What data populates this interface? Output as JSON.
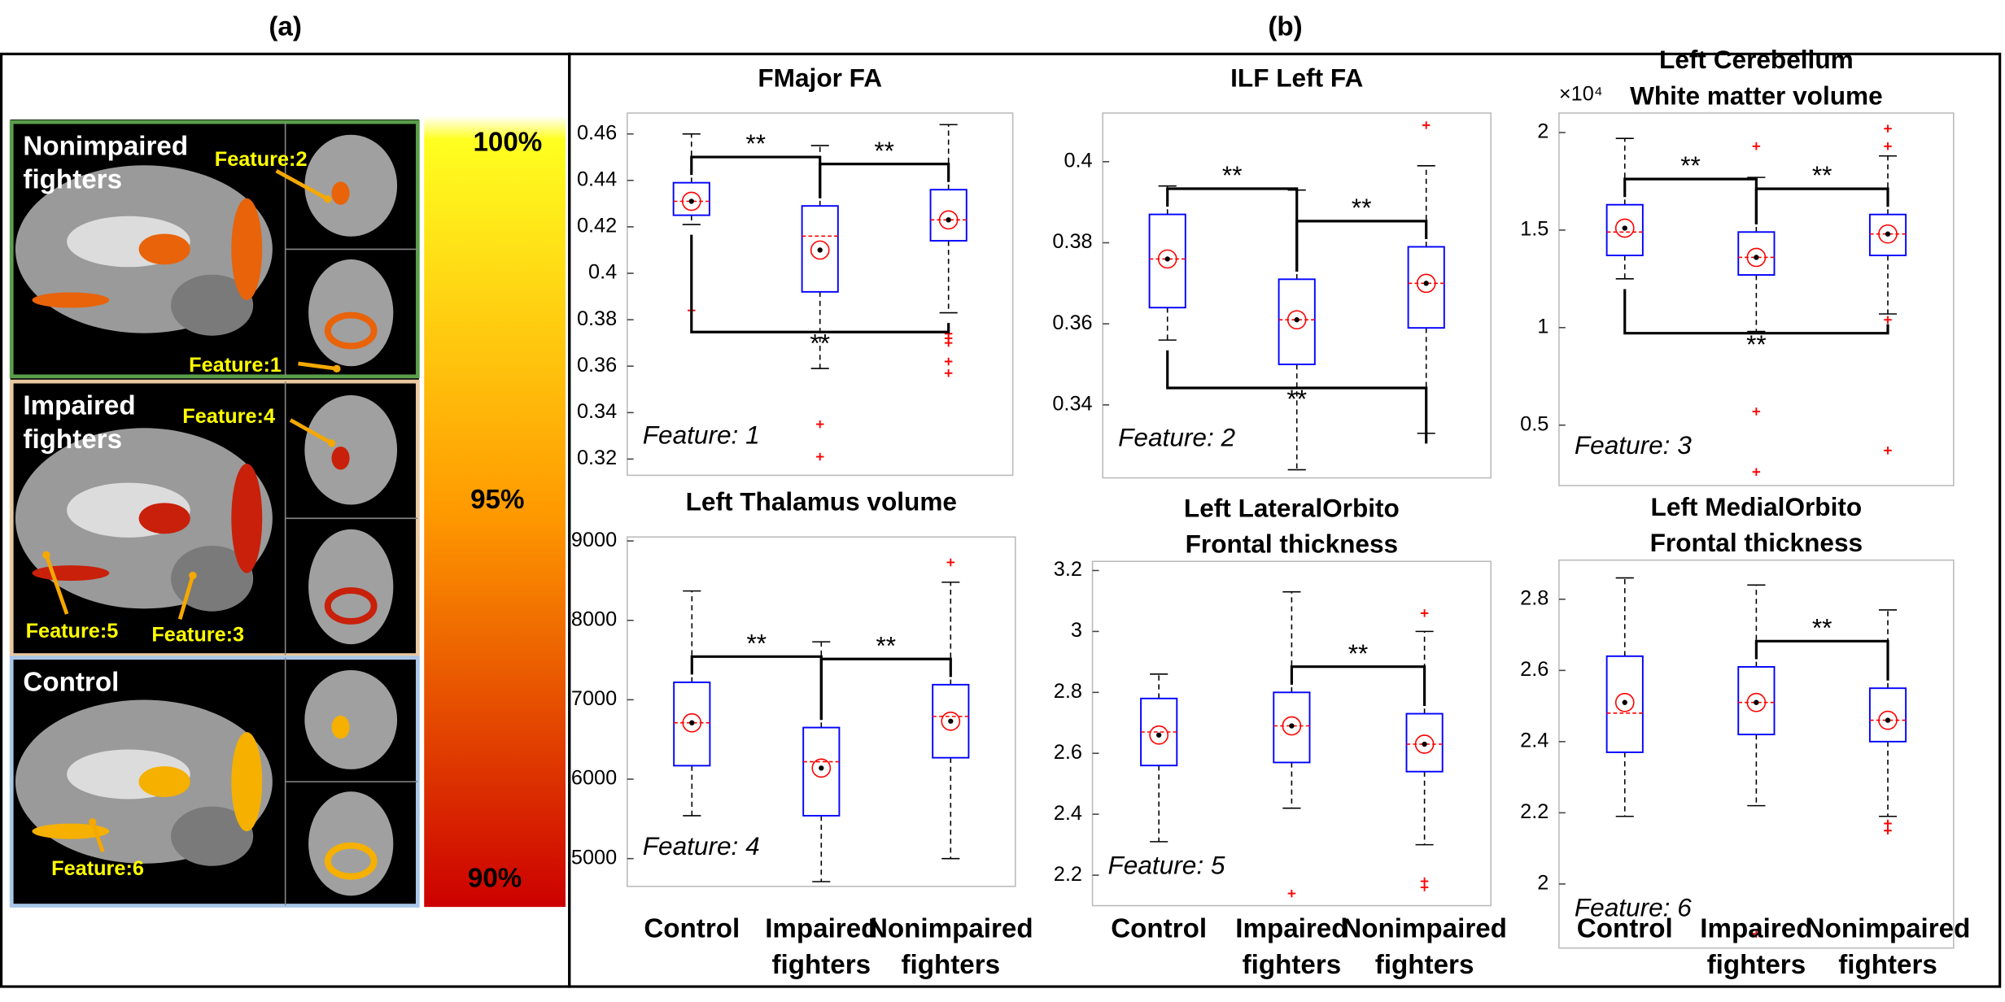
{
  "panel_labels": [
    "(a)",
    "(b)"
  ],
  "brain_panel": {
    "groups": [
      {
        "name": "Nonimpaired fighters",
        "features": [
          "Feature:2",
          "Feature:1"
        ]
      },
      {
        "name": "Impaired fighters",
        "features": [
          "Feature:4",
          "Feature:5",
          "Feature:3"
        ]
      },
      {
        "name": "Control",
        "features": [
          "Feature:6"
        ]
      }
    ],
    "colorbar": [
      "100%",
      "95%",
      "90%"
    ]
  },
  "chart_data": [
    {
      "type": "box",
      "title": [
        "FMajor FA"
      ],
      "annotation": "Feature: 1",
      "ylim": [
        0.313,
        0.469
      ],
      "yticks": [
        0.32,
        0.34,
        0.36,
        0.38,
        0.4,
        0.42,
        0.44,
        0.46
      ],
      "box_color": "#0000ff",
      "median_color": "#ff0000",
      "outlier_color": "#ff0000",
      "stats": [
        {
          "low": 0.421,
          "q1": 0.425,
          "median": 0.431,
          "q3": 0.439,
          "high": 0.46,
          "mean": 0.431,
          "outliers": [
            0.384
          ]
        },
        {
          "low": 0.359,
          "q1": 0.392,
          "median": 0.416,
          "q3": 0.429,
          "high": 0.455,
          "mean": 0.41,
          "outliers": [
            0.335,
            0.321
          ]
        },
        {
          "low": 0.383,
          "q1": 0.414,
          "median": 0.423,
          "q3": 0.436,
          "high": 0.464,
          "mean": 0.423,
          "outliers": [
            0.374,
            0.372,
            0.37,
            0.362,
            0.357
          ]
        }
      ],
      "brackets": [
        {
          "between": [
            0,
            1
          ],
          "label": "**",
          "side": "above"
        },
        {
          "between": [
            1,
            2
          ],
          "label": "**",
          "side": "above"
        },
        {
          "between": [
            0,
            2
          ],
          "label": "**",
          "side": "below"
        }
      ]
    },
    {
      "type": "box",
      "title": [
        "ILF Left FA"
      ],
      "annotation": "Feature: 2",
      "ylim": [
        0.322,
        0.412
      ],
      "yticks": [
        0.34,
        0.36,
        0.38,
        0.4
      ],
      "box_color": "#0000ff",
      "median_color": "#ff0000",
      "outlier_color": "#ff0000",
      "stats": [
        {
          "low": 0.356,
          "q1": 0.364,
          "median": 0.376,
          "q3": 0.387,
          "high": 0.394,
          "mean": 0.376,
          "outliers": []
        },
        {
          "low": 0.324,
          "q1": 0.35,
          "median": 0.361,
          "q3": 0.371,
          "high": 0.393,
          "mean": 0.361,
          "outliers": []
        },
        {
          "low": 0.333,
          "q1": 0.359,
          "median": 0.37,
          "q3": 0.379,
          "high": 0.399,
          "mean": 0.37,
          "outliers": [
            0.409
          ]
        }
      ],
      "brackets": [
        {
          "between": [
            0,
            1
          ],
          "label": "**",
          "side": "above"
        },
        {
          "between": [
            1,
            2
          ],
          "label": "**",
          "side": "above"
        },
        {
          "between": [
            0,
            2
          ],
          "label": "**",
          "side": "below"
        }
      ]
    },
    {
      "type": "box",
      "title": [
        "Left Cerebellum",
        "White matter volume"
      ],
      "annotation": "Feature: 3",
      "axis_multiplier": "×10⁴",
      "ylim": [
        0.19,
        2.1
      ],
      "yticks": [
        0.5,
        1,
        1.5,
        2
      ],
      "box_color": "#0000ff",
      "median_color": "#ff0000",
      "outlier_color": "#ff0000",
      "stats": [
        {
          "low": 1.25,
          "q1": 1.37,
          "median": 1.49,
          "q3": 1.63,
          "high": 1.97,
          "mean": 1.51,
          "outliers": []
        },
        {
          "low": 0.98,
          "q1": 1.27,
          "median": 1.36,
          "q3": 1.49,
          "high": 1.77,
          "mean": 1.36,
          "outliers": [
            1.93,
            0.57,
            0.26
          ]
        },
        {
          "low": 1.07,
          "q1": 1.37,
          "median": 1.48,
          "q3": 1.58,
          "high": 1.88,
          "mean": 1.48,
          "outliers": [
            2.02,
            1.93,
            1.04,
            0.37
          ]
        }
      ],
      "brackets": [
        {
          "between": [
            0,
            1
          ],
          "label": "**",
          "side": "above"
        },
        {
          "between": [
            1,
            2
          ],
          "label": "**",
          "side": "above"
        },
        {
          "between": [
            0,
            2
          ],
          "label": "**",
          "side": "below"
        }
      ]
    },
    {
      "type": "box",
      "title": [
        "Left Thalamus volume"
      ],
      "annotation": "Feature: 4",
      "categories": [
        "Control",
        "Impaired fighters",
        "Nonimpaired fighters"
      ],
      "ylim": [
        4650,
        9050
      ],
      "yticks": [
        5000,
        6000,
        7000,
        8000,
        9000
      ],
      "box_color": "#0000ff",
      "median_color": "#ff0000",
      "outlier_color": "#ff0000",
      "stats": [
        {
          "low": 5540,
          "q1": 6170,
          "median": 6710,
          "q3": 7220,
          "high": 8370,
          "mean": 6710,
          "outliers": []
        },
        {
          "low": 4710,
          "q1": 5540,
          "median": 6220,
          "q3": 6650,
          "high": 7730,
          "mean": 6140,
          "outliers": []
        },
        {
          "low": 5000,
          "q1": 6270,
          "median": 6790,
          "q3": 7190,
          "high": 8480,
          "mean": 6730,
          "outliers": [
            8730
          ]
        }
      ],
      "brackets": [
        {
          "between": [
            0,
            1
          ],
          "label": "**",
          "side": "above"
        },
        {
          "between": [
            1,
            2
          ],
          "label": "**",
          "side": "above"
        }
      ]
    },
    {
      "type": "box",
      "title": [
        "Left LateralOrbito",
        "Frontal thickness"
      ],
      "annotation": "Feature: 5",
      "categories": [
        "Control",
        "Impaired fighters",
        "Nonimpaired fighters"
      ],
      "ylim": [
        2.1,
        3.23
      ],
      "yticks": [
        2.2,
        2.4,
        2.6,
        2.8,
        3,
        3.2
      ],
      "box_color": "#0000ff",
      "median_color": "#ff0000",
      "outlier_color": "#ff0000",
      "stats": [
        {
          "low": 2.31,
          "q1": 2.56,
          "median": 2.67,
          "q3": 2.78,
          "high": 2.86,
          "mean": 2.66,
          "outliers": []
        },
        {
          "low": 2.42,
          "q1": 2.57,
          "median": 2.69,
          "q3": 2.8,
          "high": 3.13,
          "mean": 2.69,
          "outliers": [
            2.14
          ]
        },
        {
          "low": 2.3,
          "q1": 2.54,
          "median": 2.63,
          "q3": 2.73,
          "high": 3.0,
          "mean": 2.63,
          "outliers": [
            3.06,
            2.18,
            2.16
          ]
        }
      ],
      "brackets": [
        {
          "between": [
            1,
            2
          ],
          "label": "**",
          "side": "above"
        }
      ]
    },
    {
      "type": "box",
      "title": [
        "Left MedialOrbito",
        "Frontal thickness"
      ],
      "annotation": "Feature: 6",
      "categories": [
        "Control",
        "Impaired fighters",
        "Nonimpaired fighters"
      ],
      "ylim": [
        1.82,
        2.91
      ],
      "yticks": [
        2,
        2.2,
        2.4,
        2.6,
        2.8
      ],
      "box_color": "#0000ff",
      "median_color": "#ff0000",
      "outlier_color": "#ff0000",
      "stats": [
        {
          "low": 2.19,
          "q1": 2.37,
          "median": 2.48,
          "q3": 2.64,
          "high": 2.86,
          "mean": 2.51,
          "outliers": []
        },
        {
          "low": 2.22,
          "q1": 2.42,
          "median": 2.51,
          "q3": 2.61,
          "high": 2.84,
          "mean": 2.51,
          "outliers": [
            1.86
          ]
        },
        {
          "low": 2.19,
          "q1": 2.4,
          "median": 2.46,
          "q3": 2.55,
          "high": 2.77,
          "mean": 2.46,
          "outliers": [
            2.17,
            2.15
          ]
        }
      ],
      "brackets": [
        {
          "between": [
            1,
            2
          ],
          "label": "**",
          "side": "above"
        }
      ]
    }
  ]
}
